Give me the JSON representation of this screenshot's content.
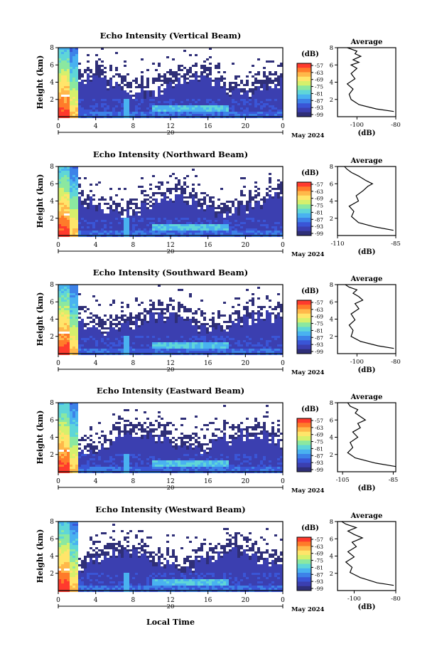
{
  "figure": {
    "xlabel": "Local Time",
    "date_label": "May 2024"
  },
  "colorbar": {
    "unit": "(dB)",
    "ticks": [
      "-57",
      "-63",
      "-69",
      "-75",
      "-81",
      "-87",
      "-93",
      "-99"
    ],
    "colors": [
      "#ff3a2d",
      "#ff7b2a",
      "#ffb84a",
      "#ffe56a",
      "#d6f06c",
      "#8be8a0",
      "#5fd6d8",
      "#49b2f0",
      "#3d82e8",
      "#3a55d6",
      "#3b3fb0",
      "#2f2f78"
    ]
  },
  "chart_data": [
    {
      "type": "heatmap",
      "title": "Echo Intensity (Vertical Beam)",
      "ylabel": "Height (km)",
      "xlim": [
        0,
        24
      ],
      "ylim": [
        0,
        8
      ],
      "xticks": [
        "0",
        "4",
        "8",
        "12",
        "16",
        "20",
        "0"
      ],
      "yticks": [
        "2",
        "4",
        "6",
        "8"
      ],
      "xsub": "20",
      "clim_db": [
        -99,
        -57
      ]
    },
    {
      "type": "line",
      "title": "Average",
      "xlabel": "(dB)",
      "xlim": [
        -110,
        -80
      ],
      "xticks": [
        "-100",
        "-80"
      ],
      "ylim": [
        0,
        8
      ],
      "yticks": [
        "2",
        "4",
        "6",
        "8"
      ],
      "profile": {
        "x": [
          -81,
          -90,
          -99,
          -103,
          -104,
          -102,
          -105,
          -101,
          -103,
          -100,
          -103,
          -99,
          -102,
          -98,
          -101,
          -100,
          -105
        ],
        "y": [
          0.6,
          0.9,
          1.4,
          2.0,
          2.6,
          3.2,
          3.8,
          4.4,
          5.0,
          5.6,
          6.0,
          6.3,
          6.6,
          7.0,
          7.3,
          7.6,
          8.0
        ]
      }
    },
    {
      "type": "heatmap",
      "title": "Echo Intensity (Northward Beam)",
      "ylabel": "Height (km)",
      "xlim": [
        0,
        24
      ],
      "ylim": [
        0,
        8
      ],
      "xticks": [
        "0",
        "4",
        "8",
        "12",
        "16",
        "20",
        "0"
      ],
      "yticks": [
        "2",
        "4",
        "6",
        "8"
      ],
      "xsub": "20",
      "clim_db": [
        -99,
        -57
      ]
    },
    {
      "type": "line",
      "title": "Average",
      "xlabel": "(dB)",
      "xlim": [
        -110,
        -85
      ],
      "xticks": [
        "-110",
        "-85"
      ],
      "ylim": [
        0,
        8
      ],
      "yticks": [
        "2",
        "4",
        "6",
        "8"
      ],
      "profile": {
        "x": [
          -86,
          -94,
          -101,
          -104,
          -103,
          -105,
          -101,
          -102,
          -99,
          -97,
          -95,
          -98,
          -101,
          -104,
          -106,
          -107
        ],
        "y": [
          0.6,
          1.0,
          1.5,
          2.2,
          2.8,
          3.4,
          4.0,
          4.6,
          5.2,
          5.7,
          6.0,
          6.4,
          6.9,
          7.3,
          7.7,
          8.0
        ]
      }
    },
    {
      "type": "heatmap",
      "title": "Echo Intensity (Southward Beam)",
      "ylabel": "Height (km)",
      "xlim": [
        0,
        24
      ],
      "ylim": [
        0,
        8
      ],
      "xticks": [
        "0",
        "4",
        "8",
        "12",
        "16",
        "20",
        "0"
      ],
      "yticks": [
        "2",
        "4",
        "6",
        "8"
      ],
      "xsub": "20",
      "clim_db": [
        -99,
        -57
      ]
    },
    {
      "type": "line",
      "title": "Average",
      "xlabel": "(dB)",
      "xlim": [
        -110,
        -80
      ],
      "xticks": [
        "-100",
        "-80"
      ],
      "ylim": [
        0,
        8
      ],
      "yticks": [
        "2",
        "4",
        "6",
        "8"
      ],
      "profile": {
        "x": [
          -81,
          -89,
          -98,
          -103,
          -102,
          -104,
          -101,
          -103,
          -99,
          -101,
          -97,
          -99,
          -102,
          -100,
          -104,
          -106
        ],
        "y": [
          0.6,
          0.9,
          1.4,
          2.0,
          2.7,
          3.3,
          3.9,
          4.6,
          5.2,
          5.8,
          6.2,
          6.6,
          7.0,
          7.4,
          7.7,
          8.0
        ]
      }
    },
    {
      "type": "heatmap",
      "title": "Echo Intensity (Eastward Beam)",
      "ylabel": "Height (km)",
      "xlim": [
        0,
        24
      ],
      "ylim": [
        0,
        8
      ],
      "xticks": [
        "0",
        "4",
        "8",
        "12",
        "16",
        "20",
        "0"
      ],
      "yticks": [
        "2",
        "4",
        "6",
        "8"
      ],
      "xsub": "20",
      "clim_db": [
        -99,
        -57
      ]
    },
    {
      "type": "line",
      "title": "Average",
      "xlabel": "(dB)",
      "xlim": [
        -107,
        -84
      ],
      "xticks": [
        "-105",
        "-85"
      ],
      "ylim": [
        0,
        8
      ],
      "yticks": [
        "2",
        "4",
        "6",
        "8"
      ],
      "profile": {
        "x": [
          -84,
          -92,
          -100,
          -103,
          -101,
          -102,
          -99,
          -101,
          -98,
          -99,
          -96,
          -98,
          -100,
          -99,
          -102,
          -103
        ],
        "y": [
          0.6,
          1.0,
          1.6,
          2.2,
          2.8,
          3.4,
          4.0,
          4.6,
          5.1,
          5.6,
          6.0,
          6.4,
          6.8,
          7.2,
          7.6,
          8.0
        ]
      }
    },
    {
      "type": "heatmap",
      "title": "Echo Intensity (Westward Beam)",
      "ylabel": "Height (km)",
      "xlim": [
        0,
        24
      ],
      "ylim": [
        0,
        8
      ],
      "xticks": [
        "0",
        "4",
        "8",
        "12",
        "16",
        "20",
        "0"
      ],
      "yticks": [
        "2",
        "4",
        "6",
        "8"
      ],
      "xsub": "20",
      "clim_db": [
        -99,
        -57
      ]
    },
    {
      "type": "line",
      "title": "Average",
      "xlabel": "(dB)",
      "xlim": [
        -108,
        -80
      ],
      "xticks": [
        "-100",
        "-80"
      ],
      "ylim": [
        0,
        8
      ],
      "yticks": [
        "2",
        "4",
        "6",
        "8"
      ],
      "profile": {
        "x": [
          -81,
          -89,
          -97,
          -102,
          -101,
          -104,
          -100,
          -103,
          -99,
          -101,
          -96,
          -100,
          -103,
          -99,
          -104,
          -106
        ],
        "y": [
          0.6,
          0.9,
          1.5,
          2.1,
          2.7,
          3.3,
          3.9,
          4.5,
          5.1,
          5.6,
          6.1,
          6.5,
          6.9,
          7.3,
          7.7,
          8.0
        ]
      }
    }
  ]
}
